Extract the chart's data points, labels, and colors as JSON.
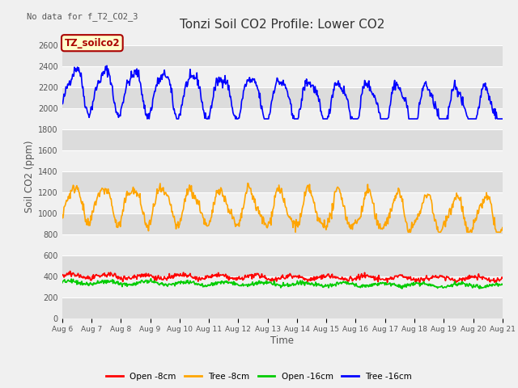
{
  "title": "Tonzi Soil CO2 Profile: Lower CO2",
  "no_data_text": "No data for f_T2_CO2_3",
  "ylabel": "Soil CO2 (ppm)",
  "xlabel": "Time",
  "legend_label": "TZ_soilco2",
  "x_tick_labels": [
    "Aug 6",
    "Aug 7",
    "Aug 8",
    "Aug 9",
    "Aug 10",
    "Aug 11",
    "Aug 12",
    "Aug 13",
    "Aug 14",
    "Aug 15",
    "Aug 16",
    "Aug 17",
    "Aug 18",
    "Aug 19",
    "Aug 20",
    "Aug 21"
  ],
  "ylim": [
    0,
    2700
  ],
  "yticks": [
    0,
    200,
    400,
    600,
    800,
    1000,
    1200,
    1400,
    1600,
    1800,
    2000,
    2200,
    2400,
    2600
  ],
  "series_labels": [
    "Open -8cm",
    "Tree -8cm",
    "Open -16cm",
    "Tree -16cm"
  ],
  "series_colors": [
    "#ff0000",
    "#ffa500",
    "#00cc00",
    "#0000ff"
  ],
  "plot_bg_light": "#f0f0f0",
  "plot_bg_dark": "#dcdcdc",
  "fig_background": "#f0f0f0",
  "grid_color": "#ffffff",
  "box_facecolor": "#ffffcc",
  "box_edgecolor": "#aa0000",
  "box_textcolor": "#aa0000",
  "no_data_color": "#555555",
  "title_color": "#333333",
  "label_color": "#555555",
  "tick_color": "#555555"
}
